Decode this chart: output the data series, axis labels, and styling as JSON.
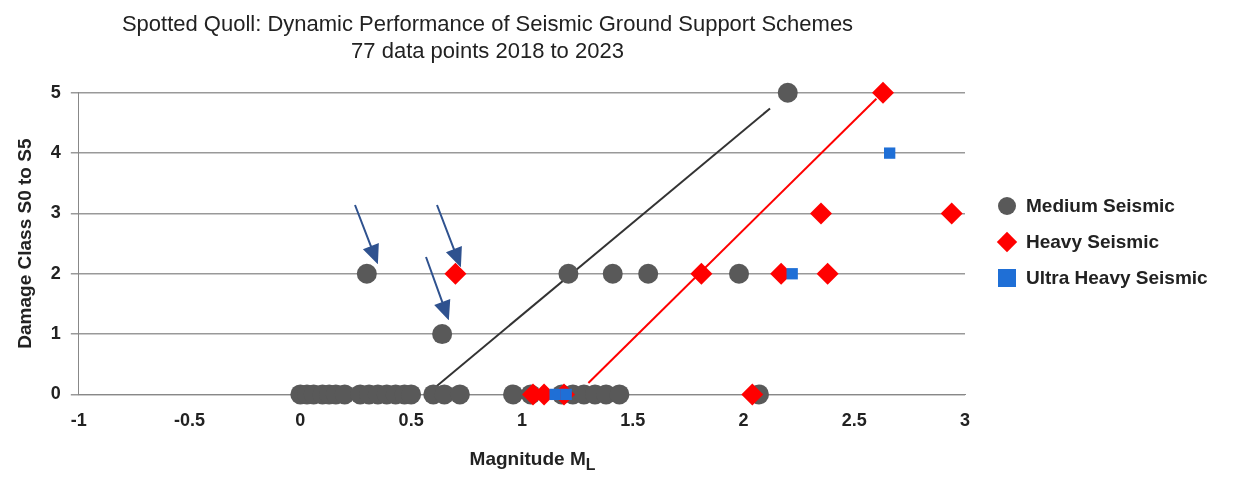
{
  "chart_data": {
    "type": "scatter",
    "title": "Spotted Quoll: Dynamic Performance of Seismic Ground Support Schemes",
    "subtitle": "77 data points 2018 to 2023",
    "xlabel": "Magnitude M$_{L}$",
    "ylabel": "Damage Class S0 to S5",
    "xlim": [
      -1,
      3
    ],
    "xticks": [
      -1,
      -0.5,
      0,
      0.5,
      1,
      1.5,
      2,
      2.5,
      3
    ],
    "ylim": [
      0,
      5
    ],
    "yticks": [
      0,
      1,
      2,
      3,
      4,
      5
    ],
    "grid": "y",
    "legend": "right",
    "series": [
      {
        "name": "Medium Seismic",
        "color": "#595959",
        "marker": "circle",
        "x": [
          2.2,
          0.3,
          1.21,
          1.41,
          1.57,
          1.98,
          0.64,
          0,
          0.03,
          0.06,
          0.1,
          0.13,
          0.16,
          0.2,
          0.27,
          0.31,
          0.35,
          0.39,
          0.43,
          0.47,
          0.5,
          0.6,
          0.65,
          0.72,
          0.96,
          1.04,
          1.18,
          1.23,
          1.28,
          1.33,
          1.38,
          1.44,
          2.07
        ],
        "values": [
          5,
          2,
          2,
          2,
          2,
          2,
          1,
          0,
          0,
          0,
          0,
          0,
          0,
          0,
          0,
          0,
          0,
          0,
          0,
          0,
          0,
          0,
          0,
          0,
          0,
          0,
          0,
          0,
          0,
          0,
          0,
          0,
          0
        ]
      },
      {
        "name": "Heavy Seismic",
        "color": "#ff0000",
        "marker": "diamond",
        "x": [
          2.63,
          2.35,
          2.94,
          0.7,
          1.81,
          2.17,
          2.38,
          1.05,
          1.1,
          1.19,
          2.04
        ],
        "values": [
          5,
          3,
          3,
          2,
          2,
          2,
          2,
          0,
          0,
          0,
          0
        ]
      },
      {
        "name": "Ultra Heavy Seismic",
        "color": "#1f6fd6",
        "marker": "square",
        "x": [
          2.66,
          2.22,
          1.15,
          1.2
        ],
        "values": [
          4,
          2,
          0,
          0
        ]
      },
      {
        "type": "line",
        "color": "#333333",
        "marker": "none",
        "x": [
          0.57,
          2.12
        ],
        "values": [
          0,
          4.74
        ]
      },
      {
        "type": "line",
        "color": "#ff0000",
        "marker": "none",
        "x": [
          1.3,
          2.6
        ],
        "values": [
          0.19,
          4.9
        ]
      }
    ]
  }
}
